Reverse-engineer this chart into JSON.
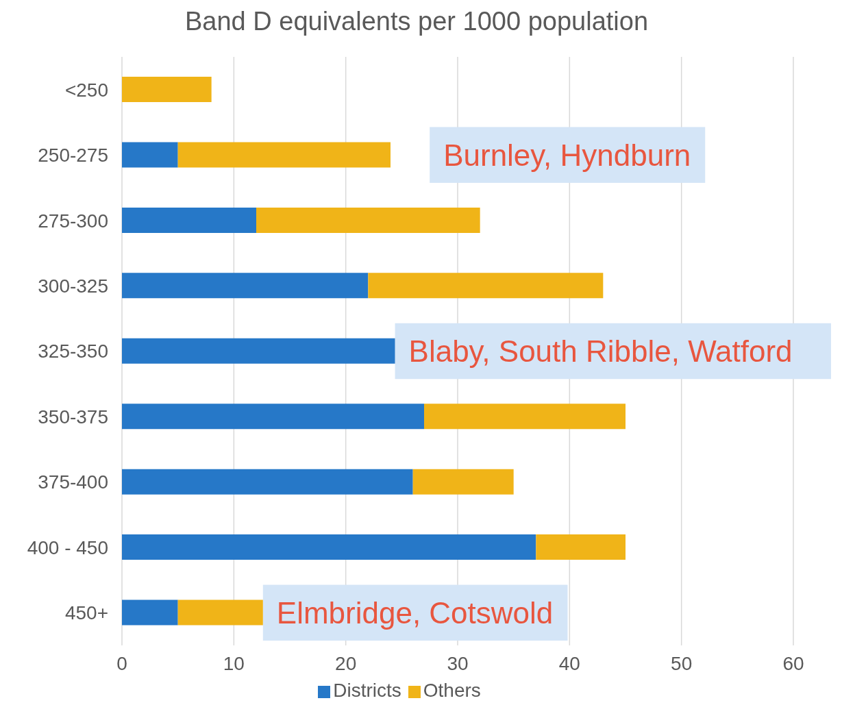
{
  "chart_data": {
    "type": "bar",
    "orientation": "horizontal",
    "stacked": true,
    "title": "Band D equivalents per 1000 population",
    "categories": [
      "<250",
      "250-275",
      "275-300",
      "300-325",
      "325-350",
      "350-375",
      "375-400",
      "400 - 450",
      "450+"
    ],
    "series": [
      {
        "name": "Districts",
        "color": "#2678c8",
        "values": [
          null,
          5,
          12,
          22,
          24.4,
          27,
          26,
          37,
          5
        ]
      },
      {
        "name": "Others",
        "color": "#f0b418",
        "values": [
          8,
          19,
          20,
          21,
          null,
          18,
          9,
          8,
          7.6
        ]
      }
    ],
    "xlim": [
      0,
      60
    ],
    "xticks": [
      0,
      10,
      20,
      30,
      40,
      50,
      60
    ],
    "grid": "x",
    "legend": "bottom",
    "annotations": [
      "Burnley, Hyndburn",
      "Blaby, South Ribble, Watford",
      "Elmbridge, Cotswold"
    ]
  }
}
